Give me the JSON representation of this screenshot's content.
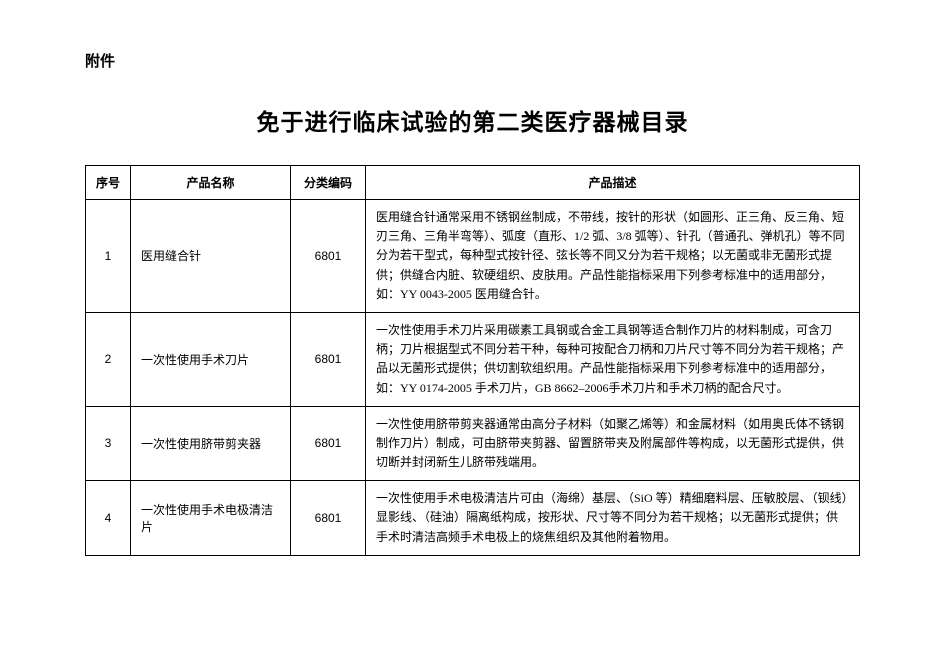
{
  "attachment_label": "附件",
  "title": "免于进行临床试验的第二类医疗器械目录",
  "table": {
    "headers": {
      "seq": "序号",
      "name": "产品名称",
      "code": "分类编码",
      "desc": "产品描述"
    },
    "rows": [
      {
        "seq": "1",
        "name": "医用缝合针",
        "code": "6801",
        "desc": "医用缝合针通常采用不锈钢丝制成，不带线，按针的形状（如圆形、正三角、反三角、短刃三角、三角半弯等）、弧度（直形、1/2 弧、3/8 弧等）、针孔（普通孔、弹机孔）等不同分为若干型式，每种型式按针径、弦长等不同又分为若干规格；以无菌或非无菌形式提供；供缝合内脏、软硬组织、皮肤用。产品性能指标采用下列参考标准中的适用部分，如：YY 0043-2005 医用缝合针。"
      },
      {
        "seq": "2",
        "name": "一次性使用手术刀片",
        "code": "6801",
        "desc": "一次性使用手术刀片采用碳素工具钢或合金工具钢等适合制作刀片的材料制成，可含刀柄；刀片根据型式不同分若干种，每种可按配合刀柄和刀片尺寸等不同分为若干规格；产品以无菌形式提供；供切割软组织用。产品性能指标采用下列参考标准中的适用部分，如：YY 0174-2005 手术刀片，GB 8662–2006手术刀片和手术刀柄的配合尺寸。"
      },
      {
        "seq": "3",
        "name": "一次性使用脐带剪夹器",
        "code": "6801",
        "desc": "一次性使用脐带剪夹器通常由高分子材料（如聚乙烯等）和金属材料（如用奥氏体不锈钢制作刀片）制成，可由脐带夹剪器、留置脐带夹及附属部件等构成，以无菌形式提供，供切断并封闭新生儿脐带残端用。"
      },
      {
        "seq": "4",
        "name": "一次性使用手术电极清洁片",
        "code": "6801",
        "desc": "一次性使用手术电极清洁片可由（海绵）基层、（SiO 等）精细磨料层、压敏胶层、（钡线）显影线、（硅油）隔离纸构成，按形状、尺寸等不同分为若干规格；以无菌形式提供；供手术时清洁高频手术电极上的烧焦组织及其他附着物用。"
      }
    ]
  }
}
